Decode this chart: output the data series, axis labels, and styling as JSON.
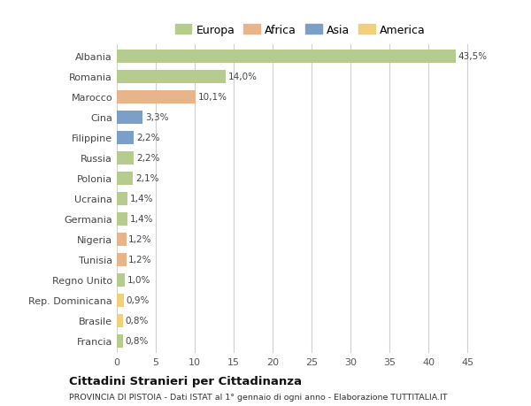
{
  "countries": [
    "Albania",
    "Romania",
    "Marocco",
    "Cina",
    "Filippine",
    "Russia",
    "Polonia",
    "Ucraina",
    "Germania",
    "Nigeria",
    "Tunisia",
    "Regno Unito",
    "Rep. Dominicana",
    "Brasile",
    "Francia"
  ],
  "values": [
    43.5,
    14.0,
    10.1,
    3.3,
    2.2,
    2.2,
    2.1,
    1.4,
    1.4,
    1.2,
    1.2,
    1.0,
    0.9,
    0.8,
    0.8
  ],
  "labels": [
    "43,5%",
    "14,0%",
    "10,1%",
    "3,3%",
    "2,2%",
    "2,2%",
    "2,1%",
    "1,4%",
    "1,4%",
    "1,2%",
    "1,2%",
    "1,0%",
    "0,9%",
    "0,8%",
    "0,8%"
  ],
  "continents": [
    "Europa",
    "Europa",
    "Africa",
    "Asia",
    "Asia",
    "Europa",
    "Europa",
    "Europa",
    "Europa",
    "Africa",
    "Africa",
    "Europa",
    "America",
    "America",
    "Europa"
  ],
  "colors": {
    "Europa": "#b5cc8e",
    "Africa": "#e8b48a",
    "Asia": "#7b9fc7",
    "America": "#f0d07a"
  },
  "xlim": [
    0,
    47
  ],
  "xticks": [
    0,
    5,
    10,
    15,
    20,
    25,
    30,
    35,
    40,
    45
  ],
  "title": "Cittadini Stranieri per Cittadinanza",
  "subtitle": "PROVINCIA DI PISTOIA - Dati ISTAT al 1° gennaio di ogni anno - Elaborazione TUTTITALIA.IT",
  "background_color": "#ffffff",
  "grid_color": "#d0d0d0",
  "bar_height": 0.65
}
